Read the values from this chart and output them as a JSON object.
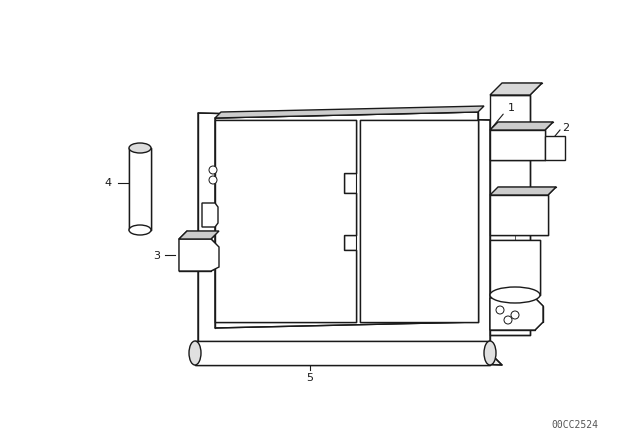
{
  "bg_color": "#ffffff",
  "line_color": "#1a1a1a",
  "line_width": 1.0,
  "fig_width": 6.4,
  "fig_height": 4.48,
  "dpi": 100,
  "watermark": "00CC2524",
  "watermark_fontsize": 7
}
